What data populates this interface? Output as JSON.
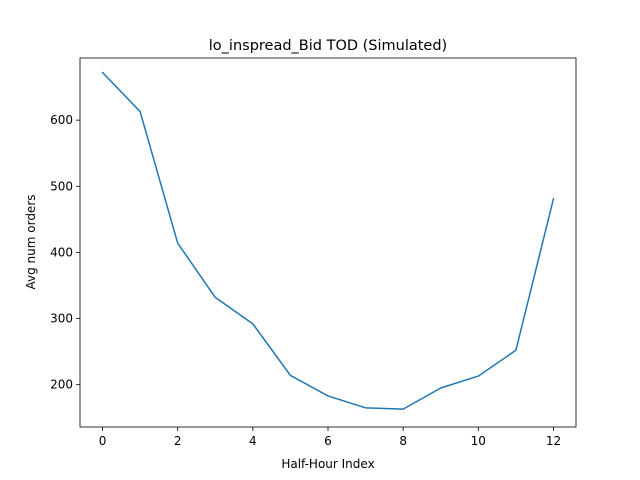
{
  "chart_data": {
    "type": "line",
    "title": "lo_inspread_Bid TOD (Simulated)",
    "xlabel": "Half-Hour Index",
    "ylabel": "Avg num orders",
    "xlim": [
      -0.6,
      12.6
    ],
    "ylim": [
      136,
      694
    ],
    "xticks": [
      0,
      2,
      4,
      6,
      8,
      10,
      12
    ],
    "yticks": [
      200,
      300,
      400,
      500,
      600
    ],
    "grid": false,
    "series": [
      {
        "color": "#1f77b4",
        "x": [
          0,
          1,
          2,
          3,
          4,
          5,
          6,
          7,
          8,
          9,
          10,
          11,
          12
        ],
        "y": [
          672,
          613,
          414,
          332,
          292,
          214,
          183,
          165,
          163,
          195,
          213,
          252,
          481
        ]
      }
    ]
  }
}
